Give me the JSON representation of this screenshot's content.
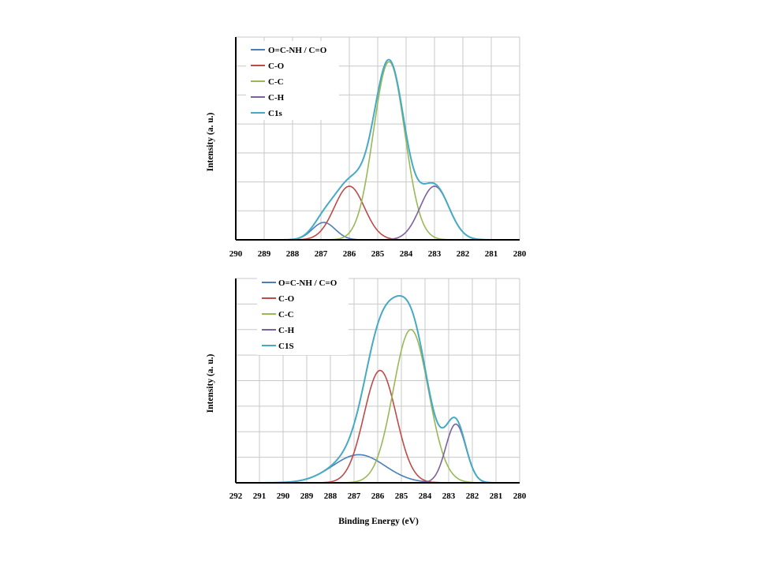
{
  "xlabel": "Binding Energy (eV)",
  "colors": {
    "blue": "#4a7ebb",
    "red": "#be4b48",
    "green": "#98b954",
    "purple": "#7d60a0",
    "teal": "#46aac5",
    "grid": "#c8c8c8",
    "axis": "#000000"
  },
  "chart_data": [
    {
      "type": "line",
      "title": "",
      "xlabel": "",
      "ylabel": "Intensity (a. u.)",
      "xlim": [
        290,
        280
      ],
      "ylim": [
        0,
        7
      ],
      "x_ticks": [
        "290",
        "289",
        "288",
        "287",
        "286",
        "285",
        "284",
        "283",
        "282",
        "281",
        "280"
      ],
      "grid": true,
      "legend": "top-left",
      "series": [
        {
          "name": "O=C-NH / C=O",
          "color": "#4a7ebb",
          "peak_center": 286.9,
          "peak_height": 0.6,
          "peak_fwhm": 0.95
        },
        {
          "name": "C-O",
          "color": "#be4b48",
          "peak_center": 286.0,
          "peak_height": 1.85,
          "peak_fwhm": 1.25
        },
        {
          "name": "C-C",
          "color": "#98b954",
          "peak_center": 284.6,
          "peak_height": 6.15,
          "peak_fwhm": 1.3
        },
        {
          "name": "C-H",
          "color": "#7d60a0",
          "peak_center": 283.0,
          "peak_height": 1.85,
          "peak_fwhm": 1.2
        },
        {
          "name": "C1s",
          "color": "#46aac5",
          "envelope": true
        }
      ]
    },
    {
      "type": "line",
      "title": "",
      "xlabel": "Binding Energy (eV)",
      "ylabel": "Intensity (a. u.)",
      "xlim": [
        292,
        280
      ],
      "ylim": [
        0,
        8
      ],
      "x_ticks": [
        "292",
        "291",
        "290",
        "289",
        "288",
        "287",
        "286",
        "285",
        "284",
        "283",
        "282",
        "281",
        "280"
      ],
      "grid": true,
      "legend": "top-left",
      "series": [
        {
          "name": "O=C-NH / C=O",
          "color": "#4a7ebb",
          "peak_center": 286.8,
          "peak_height": 1.1,
          "peak_fwhm": 2.6
        },
        {
          "name": "C-O",
          "color": "#be4b48",
          "peak_center": 285.9,
          "peak_height": 4.4,
          "peak_fwhm": 1.6
        },
        {
          "name": "C-C",
          "color": "#98b954",
          "peak_center": 284.6,
          "peak_height": 6.0,
          "peak_fwhm": 1.75
        },
        {
          "name": "C-H",
          "color": "#7d60a0",
          "peak_center": 282.7,
          "peak_height": 2.3,
          "peak_fwhm": 1.0
        },
        {
          "name": "C1S",
          "color": "#46aac5",
          "envelope": true
        }
      ]
    }
  ]
}
